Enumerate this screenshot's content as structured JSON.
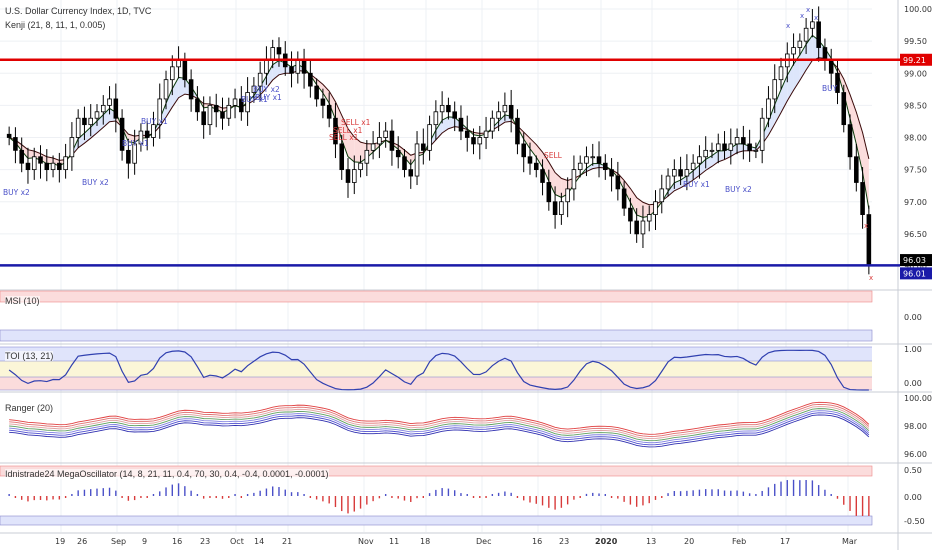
{
  "header": {
    "title": "U.S. Dollar Currency Index, 1D, TVC",
    "subtitle": "Kenji (21, 8, 11, 1, 0.005)"
  },
  "colors": {
    "up_candle": "#ffffff",
    "down_candle": "#000000",
    "resistance_line": "#e00000",
    "support_line": "#1a1aa8",
    "fast_ma": "#0a3a0a",
    "slow_ma": "#3a0a0a",
    "bull_cloud": "#dde6fb",
    "bear_cloud": "#fbdcdc",
    "buy_text": "#4a50c8",
    "sell_text": "#d83a3a"
  },
  "price_axis": {
    "labels": [
      "100.00",
      "99.50",
      "99.00",
      "98.50",
      "98.00",
      "97.50",
      "97.00",
      "96.50",
      "96.00"
    ],
    "badges": [
      {
        "value": "99.21",
        "color": "#e00000"
      },
      {
        "value": "96.03",
        "color": "#000000"
      },
      {
        "value": "96.01",
        "color": "#1a1aa8"
      }
    ]
  },
  "time_axis": {
    "labels": [
      "19",
      "26",
      "Sep",
      "9",
      "16",
      "23",
      "Oct",
      "14",
      "21",
      "Nov",
      "11",
      "18",
      "Dec",
      "16",
      "23",
      "2020",
      "13",
      "20",
      "Feb",
      "17",
      "Mar"
    ],
    "bold": [
      "2020"
    ]
  },
  "annotations": {
    "buy": [
      "BUY x2",
      "BUY x2",
      "BUY x1",
      "BUY x1",
      "BUY x1",
      "BUY x1",
      "BUY x2",
      "BUY x1",
      "BUY x2",
      "BUY"
    ],
    "sell": [
      "SELL x1",
      "SELL x1",
      "SELL x1",
      "SELL"
    ],
    "markers": [
      "x",
      "x",
      "x",
      "x",
      "x",
      "x"
    ]
  },
  "panes": {
    "msi": {
      "label": "MSI (10)",
      "axis": [
        "0.00"
      ]
    },
    "toi": {
      "label": "TOI (13, 21)",
      "axis": [
        "1.00",
        "0.00"
      ]
    },
    "ranger": {
      "label": "Ranger (20)",
      "axis": [
        "100.00",
        "98.00",
        "96.00"
      ]
    },
    "mega": {
      "label": "Idnistrade24 MegaOscillator (14, 8, 21, 11, 0.4, 70, 30, 0.4, -0.4, 0.0001, -0.0001)",
      "axis": [
        "0.50",
        "0.00",
        "-0.50"
      ]
    }
  },
  "chart_data": {
    "type": "candlestick",
    "title": "U.S. Dollar Currency Index, 1D, TVC",
    "ylim": [
      95.8,
      100.1
    ],
    "levels": {
      "resistance": 99.21,
      "support": 96.01,
      "last": 96.03
    },
    "closes": [
      98.0,
      97.8,
      97.6,
      97.5,
      97.7,
      97.6,
      97.5,
      97.6,
      97.5,
      97.7,
      98.0,
      98.3,
      98.2,
      98.3,
      98.4,
      98.5,
      98.6,
      98.3,
      97.8,
      97.6,
      97.9,
      98.1,
      98.0,
      98.2,
      98.6,
      98.9,
      99.1,
      99.2,
      98.9,
      98.6,
      98.4,
      98.2,
      98.5,
      98.4,
      98.3,
      98.5,
      98.6,
      98.4,
      98.7,
      98.8,
      99.0,
      99.2,
      99.4,
      99.3,
      99.1,
      99.0,
      99.2,
      99.0,
      98.8,
      98.6,
      98.5,
      98.3,
      97.9,
      97.5,
      97.3,
      97.5,
      97.6,
      97.8,
      97.9,
      98.0,
      98.1,
      97.8,
      97.7,
      97.5,
      97.4,
      97.9,
      97.8,
      98.2,
      98.4,
      98.5,
      98.4,
      98.3,
      98.1,
      98.0,
      97.9,
      98.0,
      98.1,
      98.3,
      98.4,
      98.5,
      98.3,
      97.9,
      97.7,
      97.6,
      97.5,
      97.3,
      97.0,
      96.8,
      97.0,
      97.2,
      97.5,
      97.6,
      97.7,
      97.7,
      97.6,
      97.5,
      97.4,
      97.2,
      96.9,
      96.7,
      96.5,
      96.7,
      96.8,
      97.0,
      97.2,
      97.4,
      97.5,
      97.4,
      97.5,
      97.6,
      97.7,
      97.8,
      97.8,
      97.9,
      97.8,
      97.9,
      98.0,
      97.9,
      97.8,
      97.8,
      98.3,
      98.6,
      98.9,
      99.1,
      99.3,
      99.4,
      99.5,
      99.7,
      99.8,
      99.4,
      99.2,
      99.0,
      98.7,
      98.2,
      97.7,
      97.3,
      96.8,
      96.03
    ],
    "annotation_texts": [
      "BUY x2",
      "BUY x2",
      "BUY x1",
      "BUY x1",
      "BUY x1",
      "BUY x1",
      "BUY x2",
      "BUY x1",
      "BUY x2",
      "BUY",
      "SELL x1",
      "SELL x1",
      "SELL x1",
      "SELL"
    ]
  }
}
